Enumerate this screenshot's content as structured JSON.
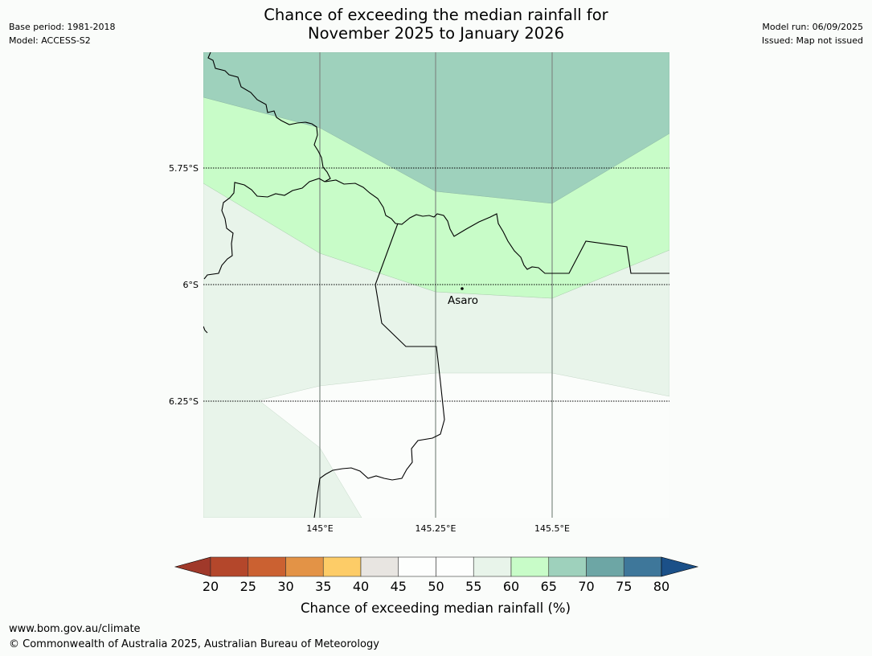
{
  "title": {
    "line1": "Chance of exceeding the median rainfall for",
    "line2": "November 2025 to January 2026"
  },
  "meta_left": {
    "base_period": "Base period: 1981-2018",
    "model": "Model: ACCESS-S2"
  },
  "meta_right": {
    "model_run": "Model run: 06/09/2025",
    "issued": "Issued: Map not issued"
  },
  "map": {
    "lat_labels": [
      "5.75°S",
      "6°S",
      "6.25°S"
    ],
    "lon_labels": [
      "145°E",
      "145.25°E",
      "145.5°E"
    ],
    "place_label": "Asaro"
  },
  "legend": {
    "title": "Chance of exceeding median rainfall (%)",
    "ticks": [
      "20",
      "25",
      "30",
      "35",
      "40",
      "45",
      "50",
      "55",
      "60",
      "65",
      "70",
      "75",
      "80"
    ],
    "colors": [
      "#a0392a",
      "#b4472b",
      "#cb6131",
      "#e39346",
      "#fdcc67",
      "#e8e5e1",
      "#fdfefd",
      "#fdfefd",
      "#e8f4ea",
      "#c8fcc8",
      "#9ed1bc",
      "#6da6a5",
      "#3e779a",
      "#1b5088"
    ]
  },
  "footer": {
    "url": "www.bom.gov.au/climate",
    "copyright": "© Commonwealth of Australia 2025, Australian Bureau of Meteorology"
  }
}
